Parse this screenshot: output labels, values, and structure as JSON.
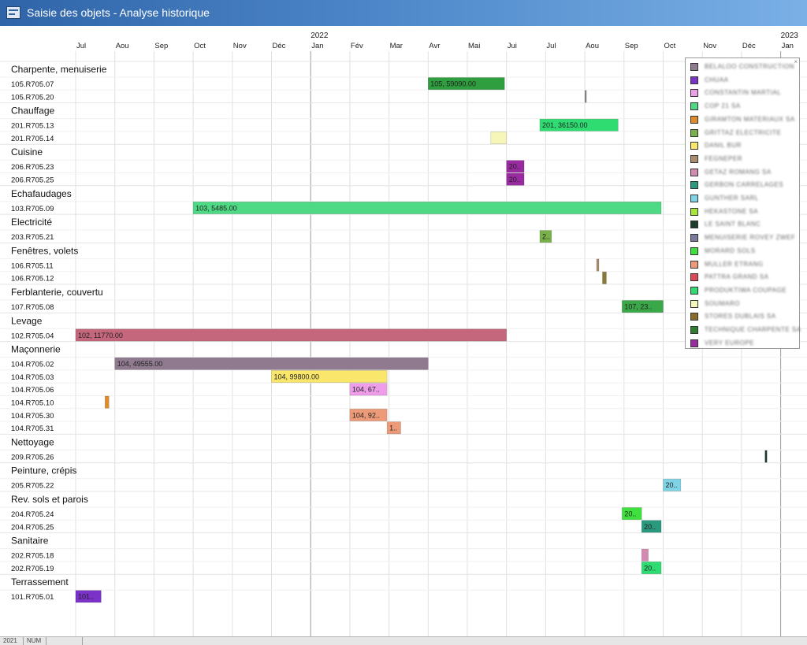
{
  "window": {
    "title": "Saisie des objets - Analyse historique"
  },
  "timeline": {
    "months": [
      {
        "label": "Jul",
        "year": ""
      },
      {
        "label": "Aou",
        "year": ""
      },
      {
        "label": "Sep",
        "year": ""
      },
      {
        "label": "Oct",
        "year": ""
      },
      {
        "label": "Nov",
        "year": ""
      },
      {
        "label": "Déc",
        "year": ""
      },
      {
        "label": "Jan",
        "year": "2022"
      },
      {
        "label": "Fév",
        "year": ""
      },
      {
        "label": "Mar",
        "year": ""
      },
      {
        "label": "Avr",
        "year": ""
      },
      {
        "label": "Mai",
        "year": ""
      },
      {
        "label": "Jui",
        "year": ""
      },
      {
        "label": "Jul",
        "year": ""
      },
      {
        "label": "Aou",
        "year": ""
      },
      {
        "label": "Sep",
        "year": ""
      },
      {
        "label": "Oct",
        "year": ""
      },
      {
        "label": "Nov",
        "year": ""
      },
      {
        "label": "Déc",
        "year": ""
      },
      {
        "label": "Jan",
        "year": "2023"
      }
    ]
  },
  "groups": [
    {
      "name": "Charpente, menuiserie",
      "rows": [
        {
          "code": "105.R705.07",
          "bars": [
            {
              "start": 9.0,
              "end": 10.95,
              "color": "#2e9e3e",
              "label": "105, 59090.00"
            }
          ]
        },
        {
          "code": "105.R705.20",
          "bars": [
            {
              "start": 13.0,
              "end": 13.04,
              "color": "#888888",
              "label": ""
            }
          ]
        }
      ]
    },
    {
      "name": "Chauffage",
      "rows": [
        {
          "code": "201.R705.13",
          "bars": [
            {
              "start": 11.85,
              "end": 13.85,
              "color": "#2edc72",
              "label": "201, 36150.00"
            }
          ]
        },
        {
          "code": "201.R705.14",
          "bars": [
            {
              "start": 10.6,
              "end": 11.0,
              "color": "#f6f6b8",
              "label": ""
            }
          ]
        }
      ]
    },
    {
      "name": "Cuisine",
      "rows": [
        {
          "code": "206.R705.23",
          "bars": [
            {
              "start": 11.0,
              "end": 11.45,
              "color": "#9a2aa0",
              "label": "20.."
            }
          ]
        },
        {
          "code": "206.R705.25",
          "bars": [
            {
              "start": 11.0,
              "end": 11.45,
              "color": "#9a2aa0",
              "label": "20.."
            }
          ]
        }
      ]
    },
    {
      "name": "Echafaudages",
      "rows": [
        {
          "code": "103.R705.09",
          "bars": [
            {
              "start": 3.0,
              "end": 14.95,
              "color": "#4ed984",
              "label": "103, 5485.00"
            }
          ]
        }
      ]
    },
    {
      "name": "Electricité",
      "rows": [
        {
          "code": "203.R705.21",
          "bars": [
            {
              "start": 11.85,
              "end": 12.15,
              "color": "#78b04a",
              "label": "2.."
            }
          ]
        }
      ]
    },
    {
      "name": "Fenêtres, volets",
      "rows": [
        {
          "code": "106.R705.11",
          "bars": [
            {
              "start": 13.3,
              "end": 13.36,
              "color": "#a88e6e",
              "label": ""
            }
          ]
        },
        {
          "code": "106.R705.12",
          "bars": [
            {
              "start": 13.45,
              "end": 13.55,
              "color": "#8a7a3a",
              "label": ""
            }
          ]
        }
      ]
    },
    {
      "name": "Ferblanterie, couvertu",
      "rows": [
        {
          "code": "107.R705.08",
          "bars": [
            {
              "start": 13.95,
              "end": 15.0,
              "color": "#3aa848",
              "label": "107, 23.."
            }
          ]
        }
      ]
    },
    {
      "name": "Levage",
      "rows": [
        {
          "code": "102.R705.04",
          "bars": [
            {
              "start": 0.0,
              "end": 11.0,
              "color": "#c4677d",
              "label": "102, 11770.00"
            }
          ]
        }
      ]
    },
    {
      "name": "Maçonnerie",
      "rows": [
        {
          "code": "104.R705.02",
          "bars": [
            {
              "start": 1.0,
              "end": 9.0,
              "color": "#8f7a8f",
              "label": "104, 49555.00"
            }
          ]
        },
        {
          "code": "104.R705.03",
          "bars": [
            {
              "start": 5.0,
              "end": 7.95,
              "color": "#fae66a",
              "label": "104, 99800.00"
            }
          ]
        },
        {
          "code": "104.R705.06",
          "bars": [
            {
              "start": 7.0,
              "end": 7.95,
              "color": "#ee9ee8",
              "label": "104, 67.."
            }
          ]
        },
        {
          "code": "104.R705.10",
          "bars": [
            {
              "start": 0.75,
              "end": 0.85,
              "color": "#e08a2a",
              "label": ""
            }
          ]
        },
        {
          "code": "104.R705.30",
          "bars": [
            {
              "start": 7.0,
              "end": 7.95,
              "color": "#ec9a78",
              "label": "104, 92.."
            }
          ]
        },
        {
          "code": "104.R705.31",
          "bars": [
            {
              "start": 7.95,
              "end": 8.3,
              "color": "#ec9a78",
              "label": "1.."
            }
          ]
        }
      ]
    },
    {
      "name": "Nettoyage",
      "rows": [
        {
          "code": "209.R705.26",
          "bars": [
            {
              "start": 17.6,
              "end": 17.65,
              "color": "#1a3a2a",
              "label": ""
            }
          ]
        }
      ]
    },
    {
      "name": "Peinture, crépis",
      "rows": [
        {
          "code": "205.R705.22",
          "bars": [
            {
              "start": 15.0,
              "end": 15.45,
              "color": "#7ed4e6",
              "label": "20.."
            }
          ]
        }
      ]
    },
    {
      "name": "Rev. sols et parois",
      "rows": [
        {
          "code": "204.R705.24",
          "bars": [
            {
              "start": 13.95,
              "end": 14.45,
              "color": "#3ee03e",
              "label": "20.."
            }
          ]
        },
        {
          "code": "204.R705.25",
          "bars": [
            {
              "start": 14.45,
              "end": 14.95,
              "color": "#2a9a7e",
              "label": "20.."
            }
          ]
        }
      ]
    },
    {
      "name": "Sanitaire",
      "rows": [
        {
          "code": "202.R705.18",
          "bars": [
            {
              "start": 14.45,
              "end": 14.62,
              "color": "#d38ab0",
              "label": ""
            }
          ]
        },
        {
          "code": "202.R705.19",
          "bars": [
            {
              "start": 14.45,
              "end": 14.95,
              "color": "#2edc72",
              "label": "20.."
            }
          ]
        }
      ]
    },
    {
      "name": "Terrassement",
      "rows": [
        {
          "code": "101.R705.01",
          "bars": [
            {
              "start": 0.0,
              "end": 0.65,
              "color": "#7a32c8",
              "label": "101.."
            }
          ]
        }
      ]
    }
  ],
  "legend": {
    "close_label": "×",
    "items": [
      {
        "color": "#8f7a8f",
        "name": "BELALOO CONSTRUCTION"
      },
      {
        "color": "#7a32c8",
        "name": "CHUAA"
      },
      {
        "color": "#ee9ee8",
        "name": "CONSTANTIN MARTIAL"
      },
      {
        "color": "#4ed984",
        "name": "COP 21 SA"
      },
      {
        "color": "#e08a2a",
        "name": "GIRAMTON MATERIAUX SA"
      },
      {
        "color": "#78b04a",
        "name": "GRITTAZ ELECTRICITE"
      },
      {
        "color": "#fae66a",
        "name": "DANIL BUR"
      },
      {
        "color": "#a88e6e",
        "name": "FEGNEPER"
      },
      {
        "color": "#d38ab0",
        "name": "GETAZ ROMANG SA"
      },
      {
        "color": "#2a9a7e",
        "name": "GERBON CARRELAGES"
      },
      {
        "color": "#7ed4e6",
        "name": "GUNTHER SARL"
      },
      {
        "color": "#a6e63a",
        "name": "HEKASTONE SA"
      },
      {
        "color": "#1a3a2a",
        "name": "LE SAINT BLANC"
      },
      {
        "color": "#7a7a9a",
        "name": "MENUISERIE ROVEY ZWEF"
      },
      {
        "color": "#3ee03e",
        "name": "MORARD SOLS"
      },
      {
        "color": "#ec9a78",
        "name": "MULLER ETRANG"
      },
      {
        "color": "#e0485a",
        "name": "PATTRA GRAND SA"
      },
      {
        "color": "#2edc72",
        "name": "PRODUKTIWA COUPAGE"
      },
      {
        "color": "#f6f6b8",
        "name": "SOUMARO"
      },
      {
        "color": "#8a6a2a",
        "name": "STORES DUBLAIS SA"
      },
      {
        "color": "#2e7e2e",
        "name": "TECHNIQUE CHARPENTE SA"
      },
      {
        "color": "#9a2aa0",
        "name": "VERY EUROPE"
      }
    ]
  },
  "status": {
    "year": "2021",
    "mode": "NUM"
  }
}
